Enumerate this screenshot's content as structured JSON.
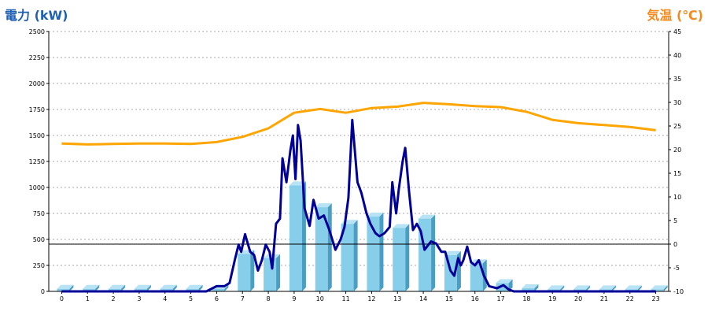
{
  "chart_data": {
    "type": "bar",
    "title_left": "電力 (kW)",
    "title_right": "気温 (℃)",
    "colors": {
      "left_title": "#1f5fb4",
      "right_title": "#f28a1e",
      "bars": "#87ceeb",
      "bars_side": "#4a9ec4",
      "bars_top": "#b8e3f5",
      "power_line": "#000099",
      "temp_line": "#ffa500",
      "grid": "#aaaaaa"
    },
    "x_axis": {
      "categories": [
        "0",
        "1",
        "2",
        "3",
        "4",
        "5",
        "6",
        "7",
        "8",
        "9",
        "10",
        "11",
        "12",
        "13",
        "14",
        "15",
        "16",
        "17",
        "18",
        "19",
        "20",
        "21",
        "22",
        "23"
      ]
    },
    "y_left": {
      "min": 0,
      "max": 2500,
      "ticks": [
        0,
        250,
        500,
        750,
        1000,
        1250,
        1500,
        1750,
        2000,
        2250,
        2500
      ]
    },
    "y_right": {
      "min": -10,
      "max": 45,
      "ticks": [
        -10,
        -5,
        0,
        5,
        10,
        15,
        20,
        25,
        30,
        35,
        40,
        45
      ]
    },
    "zero_reference": {
      "axis": "right",
      "value": 0
    },
    "grid": true,
    "series": [
      {
        "type": "bar",
        "axis": "left",
        "values": [
          25,
          25,
          25,
          25,
          25,
          25,
          25,
          360,
          320,
          1020,
          810,
          650,
          720,
          610,
          700,
          350,
          270,
          80,
          30,
          20,
          20,
          20,
          20,
          20
        ]
      },
      {
        "type": "line",
        "axis": "left",
        "points": [
          [
            0,
            0
          ],
          [
            1,
            0
          ],
          [
            2,
            0
          ],
          [
            3,
            0
          ],
          [
            4,
            0
          ],
          [
            5,
            0
          ],
          [
            5.6,
            0
          ],
          [
            6,
            50
          ],
          [
            6.3,
            50
          ],
          [
            6.5,
            80
          ],
          [
            6.7,
            300
          ],
          [
            6.85,
            450
          ],
          [
            6.95,
            380
          ],
          [
            7.1,
            550
          ],
          [
            7.3,
            380
          ],
          [
            7.45,
            350
          ],
          [
            7.6,
            200
          ],
          [
            7.75,
            300
          ],
          [
            7.9,
            450
          ],
          [
            8.05,
            380
          ],
          [
            8.15,
            220
          ],
          [
            8.3,
            650
          ],
          [
            8.45,
            700
          ],
          [
            8.55,
            1280
          ],
          [
            8.7,
            1050
          ],
          [
            8.85,
            1350
          ],
          [
            8.95,
            1500
          ],
          [
            9.05,
            1080
          ],
          [
            9.15,
            1600
          ],
          [
            9.25,
            1450
          ],
          [
            9.4,
            800
          ],
          [
            9.6,
            630
          ],
          [
            9.75,
            880
          ],
          [
            9.95,
            700
          ],
          [
            10.15,
            730
          ],
          [
            10.35,
            600
          ],
          [
            10.6,
            400
          ],
          [
            10.8,
            500
          ],
          [
            10.95,
            620
          ],
          [
            11.1,
            900
          ],
          [
            11.25,
            1650
          ],
          [
            11.45,
            1050
          ],
          [
            11.6,
            950
          ],
          [
            11.8,
            750
          ],
          [
            11.95,
            650
          ],
          [
            12.15,
            560
          ],
          [
            12.3,
            530
          ],
          [
            12.5,
            560
          ],
          [
            12.7,
            620
          ],
          [
            12.8,
            1050
          ],
          [
            12.95,
            750
          ],
          [
            13.05,
            980
          ],
          [
            13.2,
            1250
          ],
          [
            13.3,
            1380
          ],
          [
            13.45,
            960
          ],
          [
            13.6,
            590
          ],
          [
            13.75,
            650
          ],
          [
            13.9,
            580
          ],
          [
            14.05,
            400
          ],
          [
            14.3,
            480
          ],
          [
            14.5,
            460
          ],
          [
            14.7,
            380
          ],
          [
            14.85,
            380
          ],
          [
            15.05,
            200
          ],
          [
            15.2,
            150
          ],
          [
            15.35,
            320
          ],
          [
            15.45,
            250
          ],
          [
            15.55,
            300
          ],
          [
            15.7,
            430
          ],
          [
            15.85,
            280
          ],
          [
            16.0,
            250
          ],
          [
            16.15,
            300
          ],
          [
            16.35,
            150
          ],
          [
            16.55,
            50
          ],
          [
            16.85,
            30
          ],
          [
            17.1,
            60
          ],
          [
            17.3,
            20
          ],
          [
            17.5,
            0
          ],
          [
            18,
            0
          ],
          [
            19,
            0
          ],
          [
            20,
            0
          ],
          [
            21,
            0
          ],
          [
            22,
            0
          ],
          [
            23,
            0
          ]
        ]
      },
      {
        "type": "line",
        "axis": "right",
        "points": [
          [
            0,
            21.3
          ],
          [
            1,
            21.1
          ],
          [
            2,
            21.2
          ],
          [
            3,
            21.3
          ],
          [
            4,
            21.3
          ],
          [
            5,
            21.2
          ],
          [
            6,
            21.6
          ],
          [
            7,
            22.7
          ],
          [
            8,
            24.5
          ],
          [
            9,
            27.8
          ],
          [
            10,
            28.6
          ],
          [
            11,
            27.8
          ],
          [
            12,
            28.8
          ],
          [
            13,
            29.1
          ],
          [
            14,
            29.9
          ],
          [
            15,
            29.6
          ],
          [
            16,
            29.2
          ],
          [
            17,
            29.0
          ],
          [
            18,
            28.0
          ],
          [
            19,
            26.3
          ],
          [
            20,
            25.6
          ],
          [
            21,
            25.2
          ],
          [
            22,
            24.8
          ],
          [
            23,
            24.1
          ]
        ]
      }
    ]
  }
}
